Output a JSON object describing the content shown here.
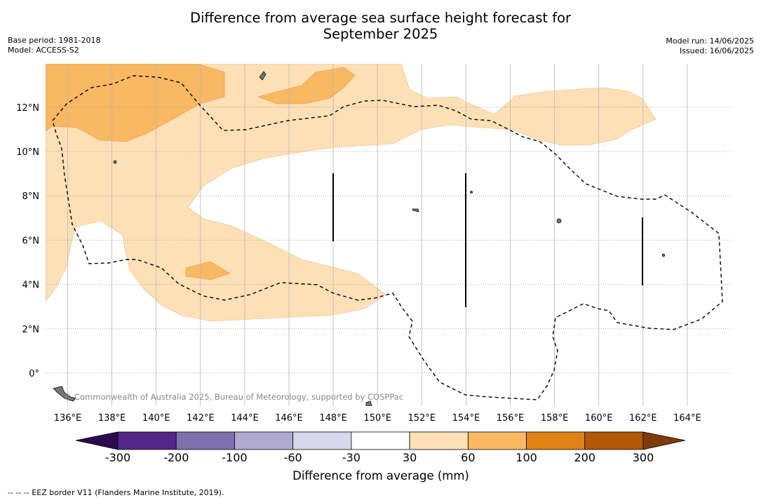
{
  "title": {
    "line1": "Difference from average sea surface height forecast for",
    "line2": "September 2025"
  },
  "meta_left": {
    "base_period": "Base period: 1981-2018",
    "model": "Model: ACCESS-S2"
  },
  "meta_right": {
    "model_run": "Model run: 14/06/2025",
    "issued": "Issued: 16/06/2025"
  },
  "map": {
    "lon_range": [
      135,
      166
    ],
    "lat_range": [
      -1.5,
      14
    ],
    "lon_ticks": [
      {
        "value": 136,
        "label": "136°E"
      },
      {
        "value": 138,
        "label": "138°E"
      },
      {
        "value": 140,
        "label": "140°E"
      },
      {
        "value": 142,
        "label": "142°E"
      },
      {
        "value": 144,
        "label": "144°E"
      },
      {
        "value": 146,
        "label": "146°E"
      },
      {
        "value": 148,
        "label": "148°E"
      },
      {
        "value": 150,
        "label": "150°E"
      },
      {
        "value": 152,
        "label": "152°E"
      },
      {
        "value": 154,
        "label": "154°E"
      },
      {
        "value": 156,
        "label": "156°E"
      },
      {
        "value": 158,
        "label": "158°E"
      },
      {
        "value": 160,
        "label": "160°E"
      },
      {
        "value": 162,
        "label": "162°E"
      },
      {
        "value": 164,
        "label": "164°E"
      }
    ],
    "lat_ticks": [
      {
        "value": 12,
        "label": "12°N"
      },
      {
        "value": 10,
        "label": "10°N"
      },
      {
        "value": 8,
        "label": "8°N"
      },
      {
        "value": 6,
        "label": "6°N"
      },
      {
        "value": 4,
        "label": "4°N"
      },
      {
        "value": 2,
        "label": "2°N"
      },
      {
        "value": 0,
        "label": "0°"
      }
    ],
    "watermark": "© Commonwealth of Australia 2025, Bureau of Meteorology, supported by COSPPac"
  },
  "colorbar": {
    "ticks": [
      "-300",
      "-200",
      "-100",
      "-60",
      "-30",
      "30",
      "60",
      "100",
      "200",
      "300"
    ],
    "colors": {
      "below_min": "#2d0a4e",
      "bins": [
        "#54258a",
        "#7f70ae",
        "#b0aad1",
        "#d8d8ec",
        "#ffffff",
        "#fee0b6",
        "#f9b862",
        "#e08214",
        "#b35806"
      ],
      "above_max": "#7f3b08"
    },
    "title": "Difference from average (mm)"
  },
  "footer": "-- -- -- EEZ border V11 (Flanders Marine Institute, 2019)."
}
